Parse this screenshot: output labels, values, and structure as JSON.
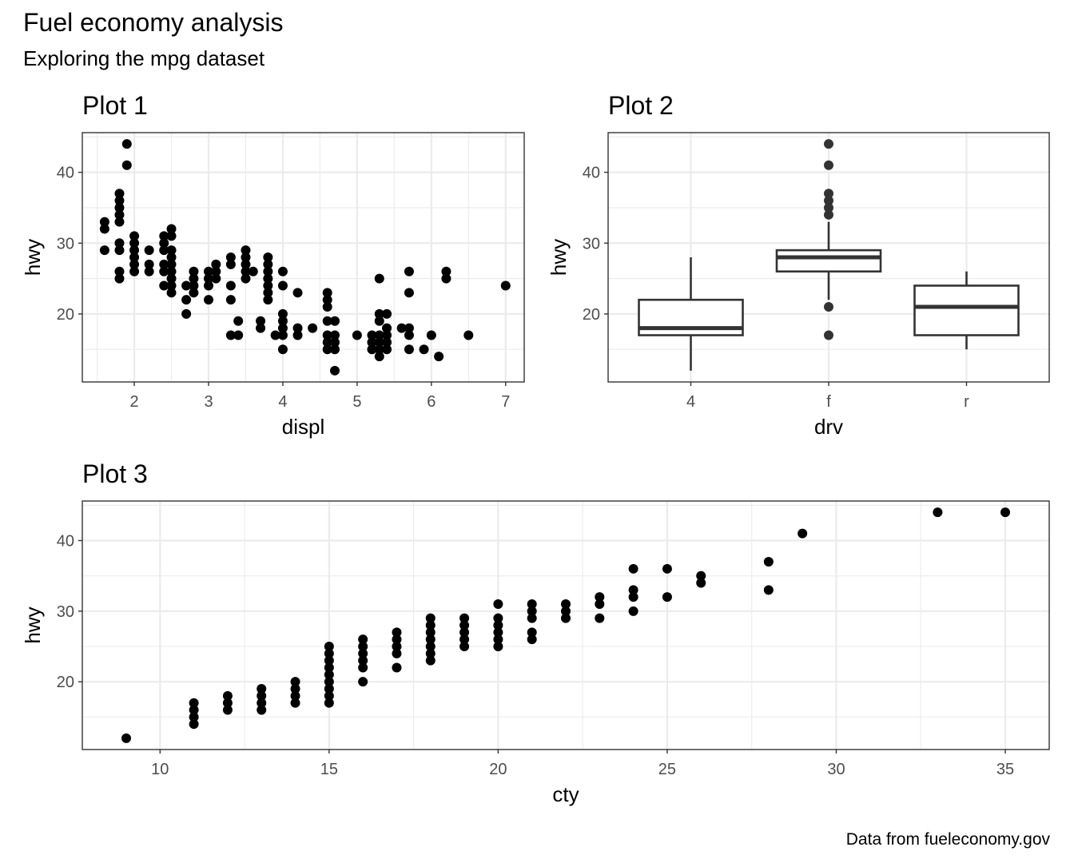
{
  "title": "Fuel economy analysis",
  "subtitle": "Exploring the mpg dataset",
  "caption": "Data from fueleconomy.gov",
  "chart_data": [
    {
      "type": "scatter",
      "title": "Plot 1",
      "xlabel": "displ",
      "ylabel": "hwy",
      "xlim": [
        1.3,
        7.25
      ],
      "ylim": [
        10.4,
        45.6
      ],
      "xticks": [
        2,
        3,
        4,
        5,
        6,
        7
      ],
      "yticks": [
        20,
        30,
        40
      ],
      "points": [
        [
          1.6,
          33
        ],
        [
          1.6,
          32
        ],
        [
          1.6,
          29
        ],
        [
          1.8,
          37
        ],
        [
          1.8,
          36
        ],
        [
          1.8,
          35
        ],
        [
          1.8,
          34
        ],
        [
          1.8,
          33
        ],
        [
          1.8,
          30
        ],
        [
          1.8,
          29
        ],
        [
          1.8,
          26
        ],
        [
          1.8,
          25
        ],
        [
          1.9,
          44
        ],
        [
          1.9,
          41
        ],
        [
          2.0,
          31
        ],
        [
          2.0,
          30
        ],
        [
          2.0,
          29
        ],
        [
          2.0,
          28
        ],
        [
          2.0,
          27
        ],
        [
          2.0,
          26
        ],
        [
          2.2,
          29
        ],
        [
          2.2,
          27
        ],
        [
          2.2,
          26
        ],
        [
          2.4,
          31
        ],
        [
          2.4,
          30
        ],
        [
          2.4,
          29
        ],
        [
          2.4,
          27
        ],
        [
          2.4,
          26
        ],
        [
          2.4,
          24
        ],
        [
          2.5,
          32
        ],
        [
          2.5,
          31
        ],
        [
          2.5,
          29
        ],
        [
          2.5,
          28
        ],
        [
          2.5,
          27
        ],
        [
          2.5,
          26
        ],
        [
          2.5,
          25
        ],
        [
          2.5,
          24
        ],
        [
          2.5,
          23
        ],
        [
          2.7,
          24
        ],
        [
          2.7,
          22
        ],
        [
          2.7,
          20
        ],
        [
          2.8,
          26
        ],
        [
          2.8,
          25
        ],
        [
          2.8,
          24
        ],
        [
          2.8,
          23
        ],
        [
          3.0,
          26
        ],
        [
          3.0,
          25
        ],
        [
          3.0,
          24
        ],
        [
          3.0,
          22
        ],
        [
          3.1,
          27
        ],
        [
          3.1,
          26
        ],
        [
          3.1,
          25
        ],
        [
          3.3,
          28
        ],
        [
          3.3,
          27
        ],
        [
          3.3,
          24
        ],
        [
          3.3,
          22
        ],
        [
          3.3,
          17
        ],
        [
          3.4,
          19
        ],
        [
          3.4,
          17
        ],
        [
          3.5,
          29
        ],
        [
          3.5,
          28
        ],
        [
          3.5,
          27
        ],
        [
          3.5,
          26
        ],
        [
          3.5,
          25
        ],
        [
          3.6,
          26
        ],
        [
          3.7,
          19
        ],
        [
          3.7,
          18
        ],
        [
          3.8,
          28
        ],
        [
          3.8,
          27
        ],
        [
          3.8,
          26
        ],
        [
          3.8,
          25
        ],
        [
          3.8,
          24
        ],
        [
          3.8,
          23
        ],
        [
          3.8,
          22
        ],
        [
          3.9,
          17
        ],
        [
          4.0,
          26
        ],
        [
          4.0,
          24
        ],
        [
          4.0,
          20
        ],
        [
          4.0,
          19
        ],
        [
          4.0,
          18
        ],
        [
          4.0,
          17
        ],
        [
          4.0,
          15
        ],
        [
          4.2,
          23
        ],
        [
          4.2,
          18
        ],
        [
          4.2,
          17
        ],
        [
          4.4,
          18
        ],
        [
          4.6,
          23
        ],
        [
          4.6,
          22
        ],
        [
          4.6,
          21
        ],
        [
          4.6,
          19
        ],
        [
          4.6,
          17
        ],
        [
          4.6,
          16
        ],
        [
          4.6,
          15
        ],
        [
          4.7,
          19
        ],
        [
          4.7,
          17
        ],
        [
          4.7,
          16
        ],
        [
          4.7,
          15
        ],
        [
          4.7,
          12
        ],
        [
          5.0,
          17
        ],
        [
          5.2,
          17
        ],
        [
          5.2,
          16
        ],
        [
          5.2,
          15
        ],
        [
          5.3,
          25
        ],
        [
          5.3,
          20
        ],
        [
          5.3,
          19
        ],
        [
          5.3,
          17
        ],
        [
          5.3,
          16
        ],
        [
          5.3,
          15
        ],
        [
          5.3,
          14
        ],
        [
          5.4,
          20
        ],
        [
          5.4,
          18
        ],
        [
          5.4,
          17
        ],
        [
          5.4,
          16
        ],
        [
          5.4,
          15
        ],
        [
          5.6,
          18
        ],
        [
          5.7,
          26
        ],
        [
          5.7,
          23
        ],
        [
          5.7,
          18
        ],
        [
          5.7,
          17
        ],
        [
          5.7,
          15
        ],
        [
          5.9,
          15
        ],
        [
          6.0,
          17
        ],
        [
          6.1,
          14
        ],
        [
          6.2,
          26
        ],
        [
          6.2,
          25
        ],
        [
          6.5,
          17
        ],
        [
          7.0,
          24
        ]
      ]
    },
    {
      "type": "box",
      "title": "Plot 2",
      "xlabel": "drv",
      "ylabel": "hwy",
      "ylim": [
        10.4,
        45.6
      ],
      "yticks": [
        20,
        30,
        40
      ],
      "categories": [
        "4",
        "f",
        "r"
      ],
      "boxes": [
        {
          "category": "4",
          "lower_whisker": 12,
          "q1": 17,
          "median": 18,
          "q3": 22,
          "upper_whisker": 28,
          "outliers": []
        },
        {
          "category": "f",
          "lower_whisker": 22,
          "q1": 26,
          "median": 28,
          "q3": 29,
          "upper_whisker": 33,
          "outliers": [
            44,
            41,
            37,
            36,
            35,
            34,
            21,
            17
          ]
        },
        {
          "category": "r",
          "lower_whisker": 15,
          "q1": 17,
          "median": 21,
          "q3": 24,
          "upper_whisker": 26,
          "outliers": []
        }
      ]
    },
    {
      "type": "scatter",
      "title": "Plot 3",
      "xlabel": "cty",
      "ylabel": "hwy",
      "xlim": [
        7.7,
        36.3
      ],
      "ylim": [
        10.4,
        45.6
      ],
      "xticks": [
        10,
        15,
        20,
        25,
        30,
        35
      ],
      "yticks": [
        20,
        30,
        40
      ],
      "points": [
        [
          9,
          12
        ],
        [
          11,
          17
        ],
        [
          11,
          16
        ],
        [
          11,
          15
        ],
        [
          11,
          14
        ],
        [
          12,
          18
        ],
        [
          12,
          17
        ],
        [
          12,
          16
        ],
        [
          13,
          19
        ],
        [
          13,
          18
        ],
        [
          13,
          17
        ],
        [
          13,
          16
        ],
        [
          14,
          20
        ],
        [
          14,
          19
        ],
        [
          14,
          18
        ],
        [
          14,
          17
        ],
        [
          15,
          25
        ],
        [
          15,
          24
        ],
        [
          15,
          23
        ],
        [
          15,
          22
        ],
        [
          15,
          21
        ],
        [
          15,
          20
        ],
        [
          15,
          19
        ],
        [
          15,
          18
        ],
        [
          15,
          17
        ],
        [
          16,
          26
        ],
        [
          16,
          25
        ],
        [
          16,
          24
        ],
        [
          16,
          23
        ],
        [
          16,
          22
        ],
        [
          16,
          20
        ],
        [
          17,
          27
        ],
        [
          17,
          26
        ],
        [
          17,
          25
        ],
        [
          17,
          24
        ],
        [
          17,
          22
        ],
        [
          18,
          29
        ],
        [
          18,
          28
        ],
        [
          18,
          27
        ],
        [
          18,
          26
        ],
        [
          18,
          25
        ],
        [
          18,
          24
        ],
        [
          18,
          23
        ],
        [
          19,
          29
        ],
        [
          19,
          28
        ],
        [
          19,
          27
        ],
        [
          19,
          26
        ],
        [
          19,
          25
        ],
        [
          20,
          31
        ],
        [
          20,
          29
        ],
        [
          20,
          28
        ],
        [
          20,
          27
        ],
        [
          20,
          26
        ],
        [
          20,
          25
        ],
        [
          21,
          31
        ],
        [
          21,
          30
        ],
        [
          21,
          29
        ],
        [
          21,
          27
        ],
        [
          21,
          26
        ],
        [
          22,
          31
        ],
        [
          22,
          30
        ],
        [
          22,
          29
        ],
        [
          23,
          32
        ],
        [
          23,
          31
        ],
        [
          23,
          29
        ],
        [
          24,
          36
        ],
        [
          24,
          33
        ],
        [
          24,
          32
        ],
        [
          24,
          30
        ],
        [
          25,
          36
        ],
        [
          25,
          32
        ],
        [
          26,
          35
        ],
        [
          26,
          34
        ],
        [
          28,
          37
        ],
        [
          28,
          33
        ],
        [
          29,
          41
        ],
        [
          33,
          44
        ],
        [
          35,
          44
        ]
      ]
    }
  ]
}
